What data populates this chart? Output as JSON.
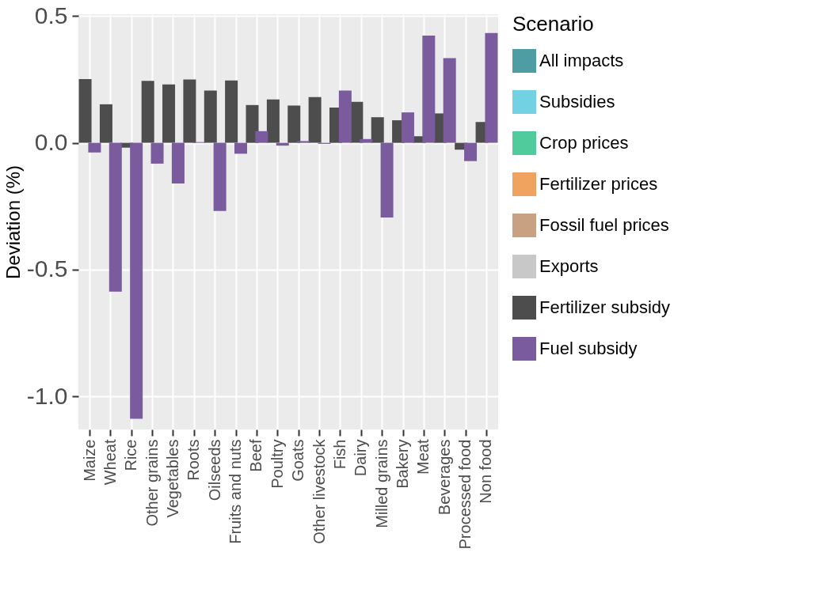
{
  "chart_data": {
    "type": "bar",
    "ylabel": "Deviation (%)",
    "legend_title": "Scenario",
    "categories": [
      "Maize",
      "Wheat",
      "Rice",
      "Other grains",
      "Vegetables",
      "Roots",
      "Oilseeds",
      "Fruits and nuts",
      "Beef",
      "Poultry",
      "Goats",
      "Other livestock",
      "Fish",
      "Dairy",
      "Milled grains",
      "Bakery",
      "Meat",
      "Beverages",
      "Processed food",
      "Non food"
    ],
    "series": [
      {
        "name": "All impacts",
        "color": "#4e9da2",
        "values": [
          null,
          null,
          null,
          null,
          null,
          null,
          null,
          null,
          null,
          null,
          null,
          null,
          null,
          null,
          null,
          null,
          null,
          null,
          null,
          null
        ]
      },
      {
        "name": "Subsidies",
        "color": "#72d1e3",
        "values": [
          null,
          null,
          null,
          null,
          null,
          null,
          null,
          null,
          null,
          null,
          null,
          null,
          null,
          null,
          null,
          null,
          null,
          null,
          null,
          null
        ]
      },
      {
        "name": "Crop prices",
        "color": "#4fcb9c",
        "values": [
          null,
          null,
          null,
          null,
          null,
          null,
          null,
          null,
          null,
          null,
          null,
          null,
          null,
          null,
          null,
          null,
          null,
          null,
          null,
          null
        ]
      },
      {
        "name": "Fertilizer prices",
        "color": "#f0a35e",
        "values": [
          null,
          null,
          null,
          null,
          null,
          null,
          null,
          null,
          null,
          null,
          null,
          null,
          null,
          null,
          null,
          null,
          null,
          null,
          null,
          null
        ]
      },
      {
        "name": "Fossil fuel prices",
        "color": "#c8a183",
        "values": [
          null,
          null,
          null,
          null,
          null,
          null,
          null,
          null,
          null,
          null,
          null,
          null,
          null,
          null,
          null,
          null,
          null,
          null,
          null,
          null
        ]
      },
      {
        "name": "Exports",
        "color": "#c8c8c8",
        "values": [
          null,
          null,
          null,
          null,
          null,
          null,
          null,
          null,
          null,
          null,
          null,
          null,
          null,
          null,
          null,
          null,
          null,
          null,
          null,
          null
        ]
      },
      {
        "name": "Fertilizer subsidy",
        "color": "#4d4d4d",
        "values": [
          0.251,
          0.152,
          -0.019,
          0.244,
          0.23,
          0.25,
          0.206,
          0.246,
          0.149,
          0.171,
          0.147,
          0.18,
          0.139,
          0.162,
          0.101,
          0.089,
          0.026,
          0.116,
          -0.027,
          0.082
        ]
      },
      {
        "name": "Fuel subsidy",
        "color": "#7a5b9e",
        "values": [
          -0.038,
          -0.587,
          -1.088,
          -0.082,
          -0.16,
          0.003,
          -0.269,
          -0.043,
          0.046,
          -0.011,
          0.007,
          -0.004,
          0.206,
          0.015,
          -0.294,
          0.12,
          0.423,
          0.334,
          -0.072,
          0.433
        ]
      }
    ],
    "ylim": [
      -1.13,
      0.507
    ],
    "yticks": [
      {
        "value": -1.0,
        "label": "-1.0"
      },
      {
        "value": -0.5,
        "label": "-0.5"
      },
      {
        "value": 0.0,
        "label": "0.0"
      },
      0.5
    ],
    "grid": true,
    "legend": "right"
  }
}
